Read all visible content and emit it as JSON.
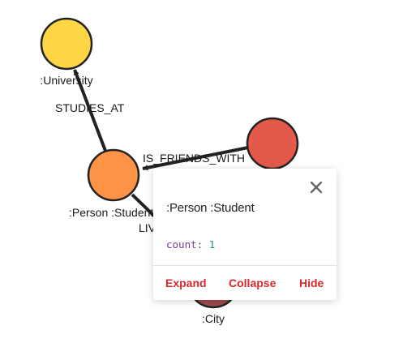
{
  "colors": {
    "university_node": "#fdd545",
    "person_node": "#fd9344",
    "friend_node": "#e35a4a",
    "city_node": "#9e4a4e",
    "edge": "#222222",
    "action_text": "#d42a2a"
  },
  "graph": {
    "nodes": [
      {
        "id": "university",
        "label": ":University"
      },
      {
        "id": "person",
        "label": ":Person :Student"
      },
      {
        "id": "friend",
        "label": ""
      },
      {
        "id": "city",
        "label": ":City"
      }
    ],
    "edges": [
      {
        "from": "person",
        "to": "university",
        "label": "STUDIES_AT"
      },
      {
        "from": "friend",
        "to": "person",
        "label": "IS_FRIENDS_WITH"
      },
      {
        "from": "person",
        "to": "city",
        "label": "LIVES_IN"
      }
    ]
  },
  "popup": {
    "title": ":Person :Student",
    "property_key": "count:",
    "property_value": "1",
    "close_icon": "close-icon",
    "actions": {
      "expand": "Expand",
      "collapse": "Collapse",
      "hide": "Hide"
    }
  }
}
